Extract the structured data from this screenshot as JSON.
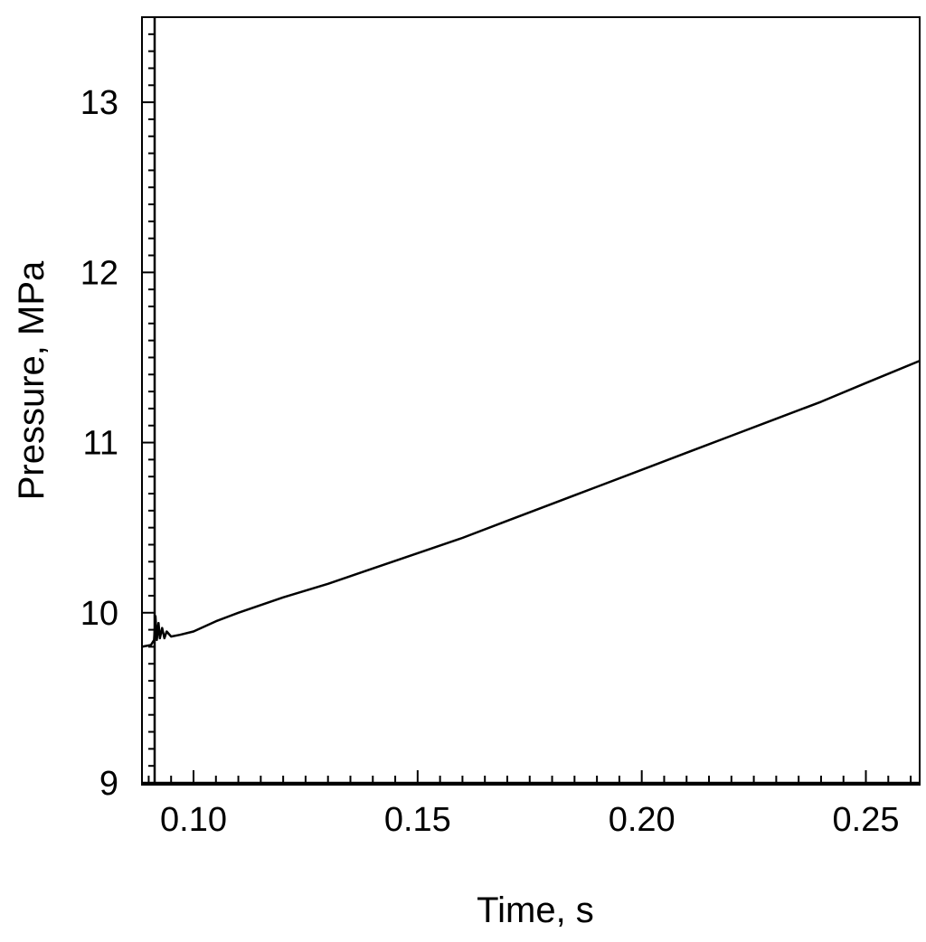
{
  "chart_data": {
    "type": "line",
    "title": "",
    "xlabel": "Time, s",
    "ylabel": "Pressure, MPa",
    "xlim": [
      0.0885,
      0.262
    ],
    "ylim": [
      9.0,
      13.5
    ],
    "x_ticks": [
      0.1,
      0.15,
      0.2,
      0.25
    ],
    "x_tick_labels": [
      "0.10",
      "0.15",
      "0.20",
      "0.25"
    ],
    "y_ticks": [
      9,
      10,
      11,
      12,
      13
    ],
    "y_tick_labels": [
      "9",
      "10",
      "11",
      "12",
      "13"
    ],
    "x_minor_step": 0.005,
    "y_minor_step": 0.1,
    "grid": false,
    "legend": "none",
    "line_color": "#000000",
    "series": [
      {
        "x": [
          0.0885,
          0.0905,
          0.0912,
          0.0915,
          0.0918,
          0.0922,
          0.0925,
          0.093,
          0.0935,
          0.094,
          0.095,
          0.097,
          0.1,
          0.105,
          0.11,
          0.12,
          0.13,
          0.14,
          0.15,
          0.16,
          0.17,
          0.18,
          0.19,
          0.2,
          0.21,
          0.22,
          0.23,
          0.24,
          0.25,
          0.262
        ],
        "y": [
          9.8,
          9.81,
          9.84,
          9.98,
          9.84,
          9.94,
          9.85,
          9.91,
          9.85,
          9.89,
          9.86,
          9.87,
          9.89,
          9.95,
          10.0,
          10.09,
          10.17,
          10.26,
          10.35,
          10.44,
          10.54,
          10.64,
          10.74,
          10.84,
          10.94,
          11.04,
          11.14,
          11.24,
          11.35,
          11.48
        ]
      }
    ]
  }
}
